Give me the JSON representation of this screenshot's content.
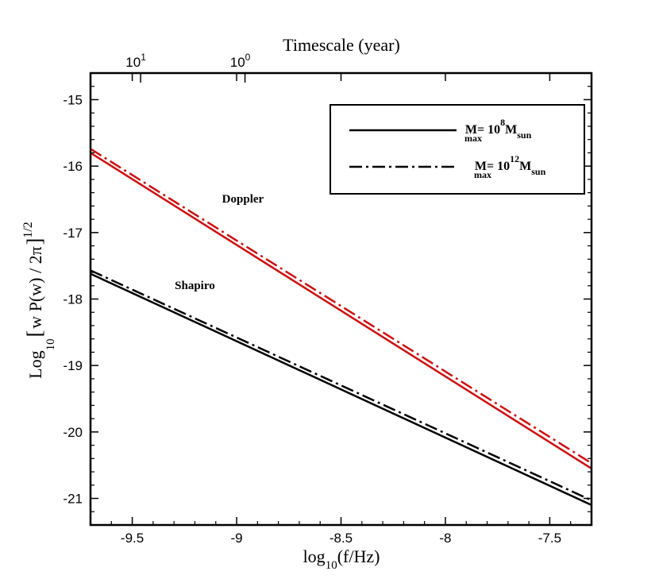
{
  "chart_data": {
    "type": "line",
    "xlabel": {
      "base": "log",
      "sub": "10",
      "rest": "(f/Hz)"
    },
    "ylabel": {
      "base": "Log",
      "sub": "10",
      "bracket_open": "[",
      "body": "w P(w) / 2π",
      "bracket_close": "]",
      "sup": "1/2"
    },
    "top_axis": {
      "title": "Timescale (year)",
      "ticks": [
        {
          "label_base": "10",
          "label_exp": "1",
          "position_x": -9.46
        },
        {
          "label_base": "10",
          "label_exp": "0",
          "position_x": -8.96
        }
      ]
    },
    "xlim": [
      -9.7,
      -7.3
    ],
    "ylim": [
      -21.4,
      -14.6
    ],
    "x_ticks": [
      -9.5,
      -9,
      -8.5,
      -8,
      -7.5
    ],
    "x_tick_labels": [
      "-9.5",
      "-9",
      "-8.5",
      "-8",
      "-7.5"
    ],
    "y_ticks": [
      -15,
      -16,
      -17,
      -18,
      -19,
      -20,
      -21
    ],
    "y_tick_labels": [
      "-15",
      "-16",
      "-17",
      "-18",
      "-19",
      "-20",
      "-21"
    ],
    "series": [
      {
        "name": "Doppler, M_max = 10^8 M_sun",
        "group": "Doppler",
        "style": "solid",
        "color": "#d01010",
        "x": [
          -9.7,
          -7.3
        ],
        "y": [
          -15.8,
          -20.55
        ]
      },
      {
        "name": "Doppler, M_max = 10^12 M_sun",
        "group": "Doppler",
        "style": "dashdot",
        "color": "#d01010",
        "x": [
          -9.7,
          -7.3
        ],
        "y": [
          -15.74,
          -20.47
        ]
      },
      {
        "name": "Shapiro, M_max = 10^8 M_sun",
        "group": "Shapiro",
        "style": "solid",
        "color": "#000000",
        "x": [
          -9.7,
          -7.3
        ],
        "y": [
          -17.62,
          -21.1
        ]
      },
      {
        "name": "Shapiro, M_max = 10^12 M_sun",
        "group": "Shapiro",
        "style": "dashdot",
        "color": "#000000",
        "x": [
          -9.7,
          -7.3
        ],
        "y": [
          -17.57,
          -21.03
        ]
      }
    ],
    "annotations": [
      {
        "text": "Doppler",
        "x": -8.97,
        "y": -16.55
      },
      {
        "text": "Shapiro",
        "x": -9.2,
        "y": -17.85
      }
    ],
    "legend": {
      "location": "top-right",
      "entries": [
        {
          "style": "solid",
          "color": "#000000",
          "m": "M",
          "m_sub": "max",
          "eq": " = 10",
          "exp": "8",
          "m2": "M",
          "m2_sub": "sun"
        },
        {
          "style": "dashdot",
          "color": "#000000",
          "m": "M",
          "m_sub": "max",
          "eq": " = 10",
          "exp": "12",
          "m2": "M",
          "m2_sub": "sun"
        }
      ]
    }
  }
}
